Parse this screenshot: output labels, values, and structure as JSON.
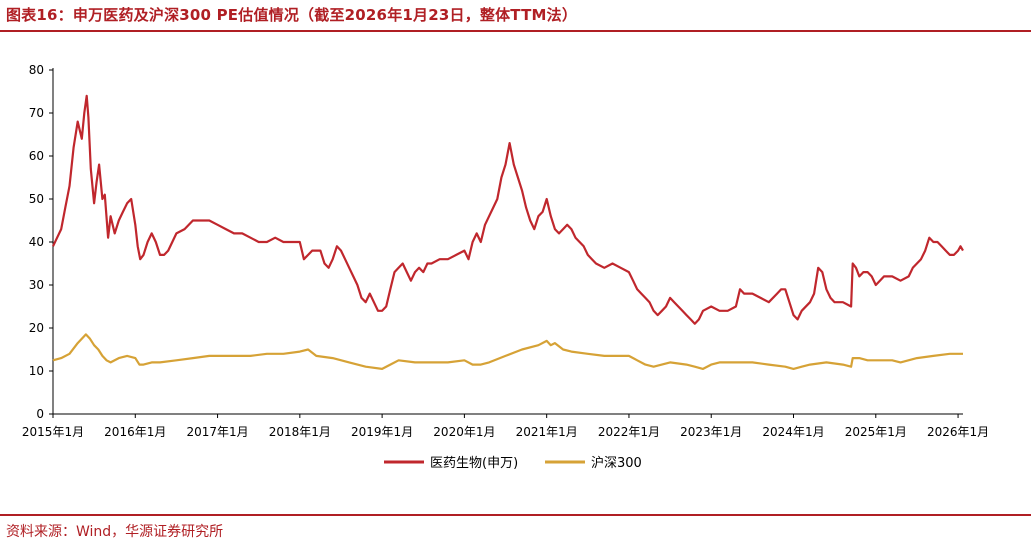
{
  "title": "图表16：申万医药及沪深300 PE估值情况（截至2026年1月23日，整体TTM法）",
  "source": "资料来源：Wind，华源证券研究所",
  "colors": {
    "accent": "#b01f24",
    "series1": "#c0272d",
    "series2": "#d6a236"
  },
  "chart_data": {
    "type": "line",
    "ylim": [
      0,
      80
    ],
    "yticks": [
      "0",
      "10",
      "20",
      "30",
      "40",
      "50",
      "60",
      "70",
      "80"
    ],
    "xlim": [
      2015.0,
      2026.06
    ],
    "xticks": [
      {
        "x": 2015,
        "label": "2015年1月"
      },
      {
        "x": 2016,
        "label": "2016年1月"
      },
      {
        "x": 2017,
        "label": "2017年1月"
      },
      {
        "x": 2018,
        "label": "2018年1月"
      },
      {
        "x": 2019,
        "label": "2019年1月"
      },
      {
        "x": 2020,
        "label": "2020年1月"
      },
      {
        "x": 2021,
        "label": "2021年1月"
      },
      {
        "x": 2022,
        "label": "2022年1月"
      },
      {
        "x": 2023,
        "label": "2023年1月"
      },
      {
        "x": 2024,
        "label": "2024年1月"
      },
      {
        "x": 2025,
        "label": "2025年1月"
      },
      {
        "x": 2026,
        "label": "2026年1月"
      }
    ],
    "legend": "bottom-center",
    "series": [
      {
        "name": "医药生物(申万)",
        "color": "#c0272d",
        "points": [
          [
            2015.0,
            39
          ],
          [
            2015.05,
            41
          ],
          [
            2015.1,
            43
          ],
          [
            2015.15,
            48
          ],
          [
            2015.2,
            53
          ],
          [
            2015.25,
            62
          ],
          [
            2015.3,
            68
          ],
          [
            2015.35,
            64
          ],
          [
            2015.38,
            70
          ],
          [
            2015.41,
            74
          ],
          [
            2015.43,
            69
          ],
          [
            2015.46,
            57
          ],
          [
            2015.5,
            49
          ],
          [
            2015.53,
            54
          ],
          [
            2015.56,
            58
          ],
          [
            2015.6,
            50
          ],
          [
            2015.63,
            51
          ],
          [
            2015.67,
            41
          ],
          [
            2015.7,
            46
          ],
          [
            2015.75,
            42
          ],
          [
            2015.8,
            45
          ],
          [
            2015.85,
            47
          ],
          [
            2015.9,
            49
          ],
          [
            2015.95,
            50
          ],
          [
            2016.0,
            44
          ],
          [
            2016.03,
            39
          ],
          [
            2016.06,
            36
          ],
          [
            2016.1,
            37
          ],
          [
            2016.15,
            40
          ],
          [
            2016.2,
            42
          ],
          [
            2016.25,
            40
          ],
          [
            2016.3,
            37
          ],
          [
            2016.35,
            37
          ],
          [
            2016.4,
            38
          ],
          [
            2016.5,
            42
          ],
          [
            2016.6,
            43
          ],
          [
            2016.7,
            45
          ],
          [
            2016.8,
            45
          ],
          [
            2016.9,
            45
          ],
          [
            2017.0,
            44
          ],
          [
            2017.1,
            43
          ],
          [
            2017.2,
            42
          ],
          [
            2017.3,
            42
          ],
          [
            2017.4,
            41
          ],
          [
            2017.5,
            40
          ],
          [
            2017.6,
            40
          ],
          [
            2017.7,
            41
          ],
          [
            2017.8,
            40
          ],
          [
            2017.9,
            40
          ],
          [
            2018.0,
            40
          ],
          [
            2018.05,
            36
          ],
          [
            2018.1,
            37
          ],
          [
            2018.15,
            38
          ],
          [
            2018.2,
            38
          ],
          [
            2018.25,
            38
          ],
          [
            2018.3,
            35
          ],
          [
            2018.35,
            34
          ],
          [
            2018.4,
            36
          ],
          [
            2018.45,
            39
          ],
          [
            2018.5,
            38
          ],
          [
            2018.55,
            36
          ],
          [
            2018.6,
            34
          ],
          [
            2018.65,
            32
          ],
          [
            2018.7,
            30
          ],
          [
            2018.75,
            27
          ],
          [
            2018.8,
            26
          ],
          [
            2018.85,
            28
          ],
          [
            2018.9,
            26
          ],
          [
            2018.95,
            24
          ],
          [
            2019.0,
            24
          ],
          [
            2019.05,
            25
          ],
          [
            2019.1,
            29
          ],
          [
            2019.15,
            33
          ],
          [
            2019.2,
            34
          ],
          [
            2019.25,
            35
          ],
          [
            2019.3,
            33
          ],
          [
            2019.35,
            31
          ],
          [
            2019.4,
            33
          ],
          [
            2019.45,
            34
          ],
          [
            2019.5,
            33
          ],
          [
            2019.55,
            35
          ],
          [
            2019.6,
            35
          ],
          [
            2019.7,
            36
          ],
          [
            2019.8,
            36
          ],
          [
            2019.9,
            37
          ],
          [
            2020.0,
            38
          ],
          [
            2020.05,
            36
          ],
          [
            2020.1,
            40
          ],
          [
            2020.15,
            42
          ],
          [
            2020.2,
            40
          ],
          [
            2020.25,
            44
          ],
          [
            2020.3,
            46
          ],
          [
            2020.35,
            48
          ],
          [
            2020.4,
            50
          ],
          [
            2020.45,
            55
          ],
          [
            2020.5,
            58
          ],
          [
            2020.55,
            63
          ],
          [
            2020.6,
            58
          ],
          [
            2020.65,
            55
          ],
          [
            2020.7,
            52
          ],
          [
            2020.75,
            48
          ],
          [
            2020.8,
            45
          ],
          [
            2020.85,
            43
          ],
          [
            2020.9,
            46
          ],
          [
            2020.95,
            47
          ],
          [
            2021.0,
            50
          ],
          [
            2021.05,
            46
          ],
          [
            2021.1,
            43
          ],
          [
            2021.15,
            42
          ],
          [
            2021.2,
            43
          ],
          [
            2021.25,
            44
          ],
          [
            2021.3,
            43
          ],
          [
            2021.35,
            41
          ],
          [
            2021.4,
            40
          ],
          [
            2021.45,
            39
          ],
          [
            2021.5,
            37
          ],
          [
            2021.55,
            36
          ],
          [
            2021.6,
            35
          ],
          [
            2021.7,
            34
          ],
          [
            2021.8,
            35
          ],
          [
            2021.9,
            34
          ],
          [
            2022.0,
            33
          ],
          [
            2022.05,
            31
          ],
          [
            2022.1,
            29
          ],
          [
            2022.15,
            28
          ],
          [
            2022.2,
            27
          ],
          [
            2022.25,
            26
          ],
          [
            2022.3,
            24
          ],
          [
            2022.35,
            23
          ],
          [
            2022.4,
            24
          ],
          [
            2022.45,
            25
          ],
          [
            2022.5,
            27
          ],
          [
            2022.55,
            26
          ],
          [
            2022.6,
            25
          ],
          [
            2022.65,
            24
          ],
          [
            2022.7,
            23
          ],
          [
            2022.75,
            22
          ],
          [
            2022.8,
            21
          ],
          [
            2022.85,
            22
          ],
          [
            2022.9,
            24
          ],
          [
            2023.0,
            25
          ],
          [
            2023.1,
            24
          ],
          [
            2023.2,
            24
          ],
          [
            2023.3,
            25
          ],
          [
            2023.35,
            29
          ],
          [
            2023.4,
            28
          ],
          [
            2023.5,
            28
          ],
          [
            2023.6,
            27
          ],
          [
            2023.7,
            26
          ],
          [
            2023.8,
            28
          ],
          [
            2023.85,
            29
          ],
          [
            2023.9,
            29
          ],
          [
            2023.95,
            26
          ],
          [
            2024.0,
            23
          ],
          [
            2024.05,
            22
          ],
          [
            2024.1,
            24
          ],
          [
            2024.2,
            26
          ],
          [
            2024.25,
            28
          ],
          [
            2024.3,
            34
          ],
          [
            2024.35,
            33
          ],
          [
            2024.4,
            29
          ],
          [
            2024.45,
            27
          ],
          [
            2024.5,
            26
          ],
          [
            2024.6,
            26
          ],
          [
            2024.7,
            25
          ],
          [
            2024.72,
            35
          ],
          [
            2024.76,
            34
          ],
          [
            2024.8,
            32
          ],
          [
            2024.85,
            33
          ],
          [
            2024.9,
            33
          ],
          [
            2024.95,
            32
          ],
          [
            2025.0,
            30
          ],
          [
            2025.05,
            31
          ],
          [
            2025.1,
            32
          ],
          [
            2025.2,
            32
          ],
          [
            2025.3,
            31
          ],
          [
            2025.4,
            32
          ],
          [
            2025.45,
            34
          ],
          [
            2025.5,
            35
          ],
          [
            2025.55,
            36
          ],
          [
            2025.6,
            38
          ],
          [
            2025.65,
            41
          ],
          [
            2025.7,
            40
          ],
          [
            2025.75,
            40
          ],
          [
            2025.8,
            39
          ],
          [
            2025.85,
            38
          ],
          [
            2025.9,
            37
          ],
          [
            2025.95,
            37
          ],
          [
            2026.0,
            38
          ],
          [
            2026.03,
            39
          ],
          [
            2026.06,
            38
          ]
        ]
      },
      {
        "name": "沪深300",
        "color": "#d6a236",
        "points": [
          [
            2015.0,
            12.5
          ],
          [
            2015.1,
            13
          ],
          [
            2015.2,
            14
          ],
          [
            2015.3,
            16.5
          ],
          [
            2015.4,
            18.5
          ],
          [
            2015.45,
            17.5
          ],
          [
            2015.5,
            16
          ],
          [
            2015.55,
            15
          ],
          [
            2015.6,
            13.5
          ],
          [
            2015.65,
            12.5
          ],
          [
            2015.7,
            12
          ],
          [
            2015.8,
            13
          ],
          [
            2015.9,
            13.5
          ],
          [
            2016.0,
            13
          ],
          [
            2016.05,
            11.5
          ],
          [
            2016.1,
            11.5
          ],
          [
            2016.2,
            12
          ],
          [
            2016.3,
            12
          ],
          [
            2016.5,
            12.5
          ],
          [
            2016.7,
            13
          ],
          [
            2016.9,
            13.5
          ],
          [
            2017.0,
            13.5
          ],
          [
            2017.2,
            13.5
          ],
          [
            2017.4,
            13.5
          ],
          [
            2017.6,
            14
          ],
          [
            2017.8,
            14
          ],
          [
            2018.0,
            14.5
          ],
          [
            2018.1,
            15
          ],
          [
            2018.2,
            13.5
          ],
          [
            2018.4,
            13
          ],
          [
            2018.6,
            12
          ],
          [
            2018.8,
            11
          ],
          [
            2019.0,
            10.5
          ],
          [
            2019.1,
            11.5
          ],
          [
            2019.2,
            12.5
          ],
          [
            2019.4,
            12
          ],
          [
            2019.6,
            12
          ],
          [
            2019.8,
            12
          ],
          [
            2020.0,
            12.5
          ],
          [
            2020.1,
            11.5
          ],
          [
            2020.2,
            11.5
          ],
          [
            2020.3,
            12
          ],
          [
            2020.5,
            13.5
          ],
          [
            2020.7,
            15
          ],
          [
            2020.9,
            16
          ],
          [
            2021.0,
            17
          ],
          [
            2021.05,
            16
          ],
          [
            2021.1,
            16.5
          ],
          [
            2021.2,
            15
          ],
          [
            2021.3,
            14.5
          ],
          [
            2021.5,
            14
          ],
          [
            2021.7,
            13.5
          ],
          [
            2021.9,
            13.5
          ],
          [
            2022.0,
            13.5
          ],
          [
            2022.1,
            12.5
          ],
          [
            2022.2,
            11.5
          ],
          [
            2022.3,
            11
          ],
          [
            2022.5,
            12
          ],
          [
            2022.7,
            11.5
          ],
          [
            2022.8,
            11
          ],
          [
            2022.9,
            10.5
          ],
          [
            2023.0,
            11.5
          ],
          [
            2023.1,
            12
          ],
          [
            2023.3,
            12
          ],
          [
            2023.5,
            12
          ],
          [
            2023.7,
            11.5
          ],
          [
            2023.9,
            11
          ],
          [
            2024.0,
            10.5
          ],
          [
            2024.1,
            11
          ],
          [
            2024.2,
            11.5
          ],
          [
            2024.4,
            12
          ],
          [
            2024.6,
            11.5
          ],
          [
            2024.7,
            11
          ],
          [
            2024.72,
            13
          ],
          [
            2024.8,
            13
          ],
          [
            2024.9,
            12.5
          ],
          [
            2025.0,
            12.5
          ],
          [
            2025.2,
            12.5
          ],
          [
            2025.3,
            12
          ],
          [
            2025.5,
            13
          ],
          [
            2025.7,
            13.5
          ],
          [
            2025.9,
            14
          ],
          [
            2026.0,
            14
          ],
          [
            2026.06,
            14
          ]
        ]
      }
    ]
  }
}
